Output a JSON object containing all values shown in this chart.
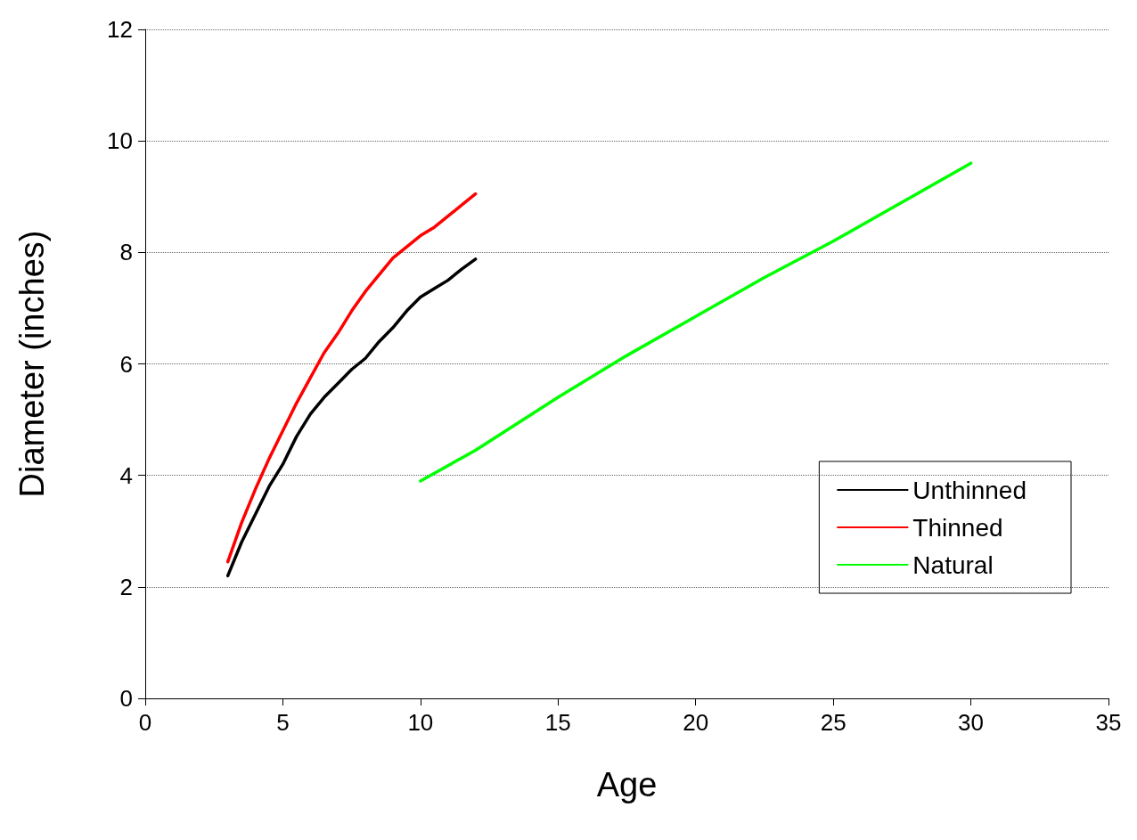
{
  "chart_data": {
    "type": "line",
    "xlabel": "Age",
    "ylabel": "Diameter (inches)",
    "xlim": [
      0,
      35
    ],
    "xticks": [
      0,
      5,
      10,
      15,
      20,
      25,
      30,
      35
    ],
    "ylim": [
      0,
      12
    ],
    "yticks": [
      0,
      2,
      4,
      6,
      8,
      10,
      12
    ],
    "grid": "y",
    "legend": "bottom right",
    "marker": "none",
    "line_style": "solid",
    "series": [
      {
        "name": "Unthinned",
        "color": "#000000",
        "x": [
          3,
          3.5,
          4,
          4.5,
          5,
          5.5,
          6,
          6.5,
          7,
          7.5,
          8,
          8.5,
          9,
          9.5,
          10,
          10.5,
          11,
          11.5,
          12
        ],
        "values": [
          2.2,
          2.8,
          3.3,
          3.8,
          4.2,
          4.7,
          5.1,
          5.4,
          5.65,
          5.9,
          6.1,
          6.4,
          6.65,
          6.95,
          7.2,
          7.35,
          7.5,
          7.7,
          7.88
        ]
      },
      {
        "name": "Thinned",
        "color": "#ff0000",
        "x": [
          3,
          3.5,
          4,
          4.5,
          5,
          5.5,
          6,
          6.5,
          7,
          7.5,
          8,
          8.5,
          9,
          9.5,
          10,
          10.5,
          11,
          11.5,
          12
        ],
        "values": [
          2.45,
          3.15,
          3.75,
          4.3,
          4.8,
          5.3,
          5.75,
          6.2,
          6.55,
          6.95,
          7.3,
          7.6,
          7.9,
          8.1,
          8.3,
          8.45,
          8.65,
          8.85,
          9.05
        ]
      },
      {
        "name": "Natural",
        "color": "#00ff00",
        "x": [
          10,
          12,
          15,
          17.5,
          20,
          22.5,
          25,
          27.5,
          30
        ],
        "values": [
          3.9,
          4.45,
          5.4,
          6.15,
          6.85,
          7.55,
          8.2,
          8.9,
          9.6
        ]
      }
    ]
  }
}
